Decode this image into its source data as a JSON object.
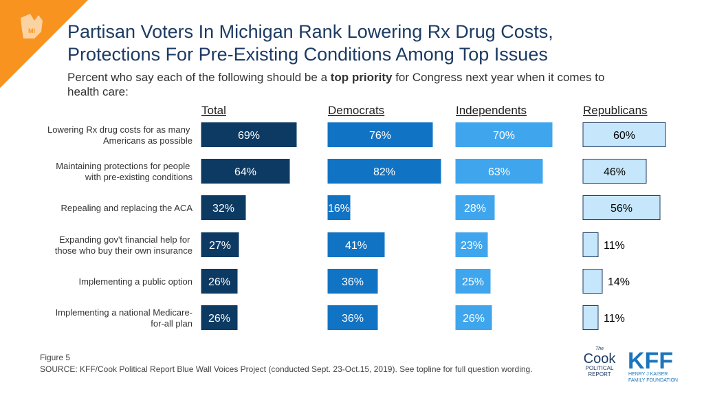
{
  "chart_data": {
    "type": "bar",
    "orientation": "horizontal",
    "title": [
      "Partisan Voters In Michigan Rank Lowering Rx Drug Costs,",
      "Protections For Pre-Existing Conditions Among Top Issues"
    ],
    "subtitle": [
      "Percent who say each of the following should be a ",
      "top priority",
      " for Congress next year when it comes to",
      "health care:"
    ],
    "categories": [
      "Lowering Rx drug costs for as many Americans as possible",
      "Maintaining protections for people with pre-existing conditions",
      "Repealing and replacing the ACA",
      "Expanding gov't financial help for those who buy their own insurance",
      "Implementing a public option",
      "Implementing a national Medicare-for-all plan"
    ],
    "xlim": [
      0,
      100
    ],
    "series": [
      {
        "name": "Total",
        "color": "#0d3a63",
        "label_color": "#ffffff",
        "values": [
          69,
          64,
          32,
          27,
          26,
          26
        ],
        "value_labels": [
          "69%",
          "64%",
          "32%",
          "27%",
          "26%",
          "26%"
        ]
      },
      {
        "name": "Democrats",
        "color": "#1173c4",
        "label_color": "#ffffff",
        "values": [
          76,
          82,
          16,
          41,
          36,
          36
        ],
        "value_labels": [
          "76%",
          "82%",
          "16%",
          "41%",
          "36%",
          "36%"
        ]
      },
      {
        "name": "Independents",
        "color": "#3fa6ee",
        "label_color": "#ffffff",
        "values": [
          70,
          63,
          28,
          23,
          25,
          26
        ],
        "value_labels": [
          "70%",
          "63%",
          "28%",
          "23%",
          "25%",
          "26%"
        ]
      },
      {
        "name": "Republicans",
        "color": "#c6e7fb",
        "label_color": "#000000",
        "values": [
          60,
          46,
          56,
          11,
          14,
          11
        ],
        "value_labels": [
          "60%",
          "46%",
          "56%",
          "11%",
          "14%",
          "11%"
        ]
      }
    ],
    "figure": "Figure 5",
    "source": "SOURCE: KFF/Cook Political Report Blue Wall Voices Project (conducted Sept. 23-Oct.15, 2019). See topline for full question wording.",
    "badge": "MI",
    "logos": {
      "cook": [
        "The",
        "Cook",
        "POLITICAL",
        "REPORT"
      ],
      "kff": [
        "KFF",
        "HENRY J KAISER",
        "FAMILY FOUNDATION"
      ]
    }
  }
}
